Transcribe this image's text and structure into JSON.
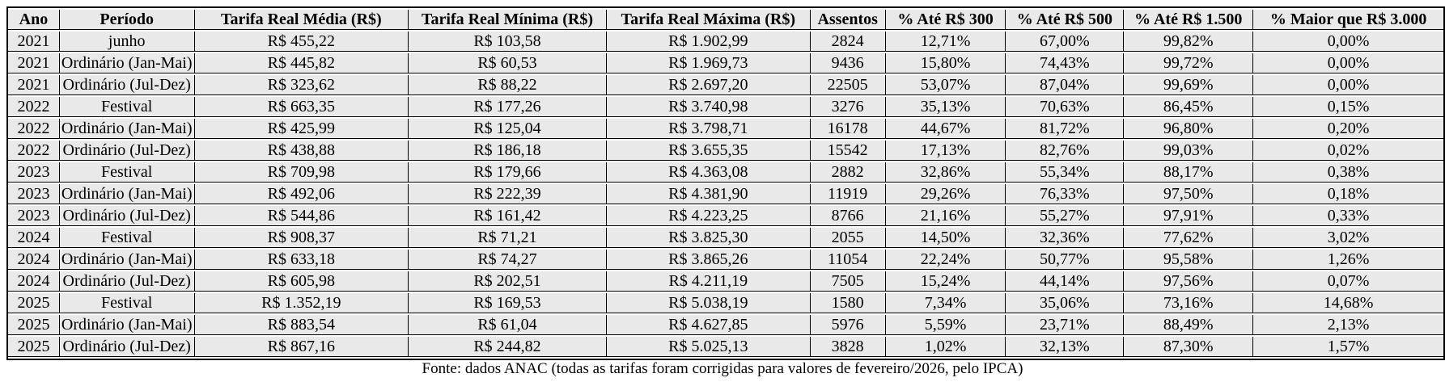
{
  "colors": {
    "cell_background": "#e9e9e9",
    "border": "#000000",
    "page_background": "#ffffff",
    "text": "#000000"
  },
  "chart_data": {
    "type": "table",
    "columns": [
      "Ano",
      "Período",
      "Tarifa Real Média (R$)",
      "Tarifa Real Mínima (R$)",
      "Tarifa Real Máxima (R$)",
      "Assentos",
      "% Até R$ 300",
      "% Até R$ 500",
      "% Até R$ 1.500",
      "% Maior que R$ 3.000"
    ],
    "rows": [
      [
        "2021",
        "junho",
        "R$ 455,22",
        "R$ 103,58",
        "R$ 1.902,99",
        "2824",
        "12,71%",
        "67,00%",
        "99,82%",
        "0,00%"
      ],
      [
        "2021",
        "Ordinário (Jan-Mai)",
        "R$ 445,82",
        "R$ 60,53",
        "R$ 1.969,73",
        "9436",
        "15,80%",
        "74,43%",
        "99,72%",
        "0,00%"
      ],
      [
        "2021",
        "Ordinário (Jul-Dez)",
        "R$ 323,62",
        "R$ 88,22",
        "R$ 2.697,20",
        "22505",
        "53,07%",
        "87,04%",
        "99,69%",
        "0,00%"
      ],
      [
        "2022",
        "Festival",
        "R$ 663,35",
        "R$ 177,26",
        "R$ 3.740,98",
        "3276",
        "35,13%",
        "70,63%",
        "86,45%",
        "0,15%"
      ],
      [
        "2022",
        "Ordinário (Jan-Mai)",
        "R$ 425,99",
        "R$ 125,04",
        "R$ 3.798,71",
        "16178",
        "44,67%",
        "81,72%",
        "96,80%",
        "0,20%"
      ],
      [
        "2022",
        "Ordinário (Jul-Dez)",
        "R$ 438,88",
        "R$ 186,18",
        "R$ 3.655,35",
        "15542",
        "17,13%",
        "82,76%",
        "99,03%",
        "0,02%"
      ],
      [
        "2023",
        "Festival",
        "R$ 709,98",
        "R$ 179,66",
        "R$ 4.363,08",
        "2882",
        "32,86%",
        "55,34%",
        "88,17%",
        "0,38%"
      ],
      [
        "2023",
        "Ordinário (Jan-Mai)",
        "R$ 492,06",
        "R$ 222,39",
        "R$ 4.381,90",
        "11919",
        "29,26%",
        "76,33%",
        "97,50%",
        "0,18%"
      ],
      [
        "2023",
        "Ordinário (Jul-Dez)",
        "R$ 544,86",
        "R$ 161,42",
        "R$ 4.223,25",
        "8766",
        "21,16%",
        "55,27%",
        "97,91%",
        "0,33%"
      ],
      [
        "2024",
        "Festival",
        "R$ 908,37",
        "R$ 71,21",
        "R$ 3.825,30",
        "2055",
        "14,50%",
        "32,36%",
        "77,62%",
        "3,02%"
      ],
      [
        "2024",
        "Ordinário (Jan-Mai)",
        "R$ 633,18",
        "R$ 74,27",
        "R$ 3.865,26",
        "11054",
        "22,24%",
        "50,77%",
        "95,58%",
        "1,26%"
      ],
      [
        "2024",
        "Ordinário (Jul-Dez)",
        "R$ 605,98",
        "R$ 202,51",
        "R$ 4.211,19",
        "7505",
        "15,24%",
        "44,14%",
        "97,56%",
        "0,07%"
      ],
      [
        "2025",
        "Festival",
        "R$ 1.352,19",
        "R$ 169,53",
        "R$ 5.038,19",
        "1580",
        "7,34%",
        "35,06%",
        "73,16%",
        "14,68%"
      ],
      [
        "2025",
        "Ordinário (Jan-Mai)",
        "R$ 883,54",
        "R$ 61,04",
        "R$ 4.627,85",
        "5976",
        "5,59%",
        "23,71%",
        "88,49%",
        "2,13%"
      ],
      [
        "2025",
        "Ordinário (Jul-Dez)",
        "R$ 867,16",
        "R$ 244,82",
        "R$ 5.025,13",
        "3828",
        "1,02%",
        "32,13%",
        "87,30%",
        "1,57%"
      ]
    ],
    "caption": "Fonte: dados ANAC (todas as tarifas foram corrigidas para valores de fevereiro/2026, pelo IPCA)",
    "layout": {
      "grid": "on",
      "header_style": "bold",
      "cell_alignment": "center"
    }
  }
}
